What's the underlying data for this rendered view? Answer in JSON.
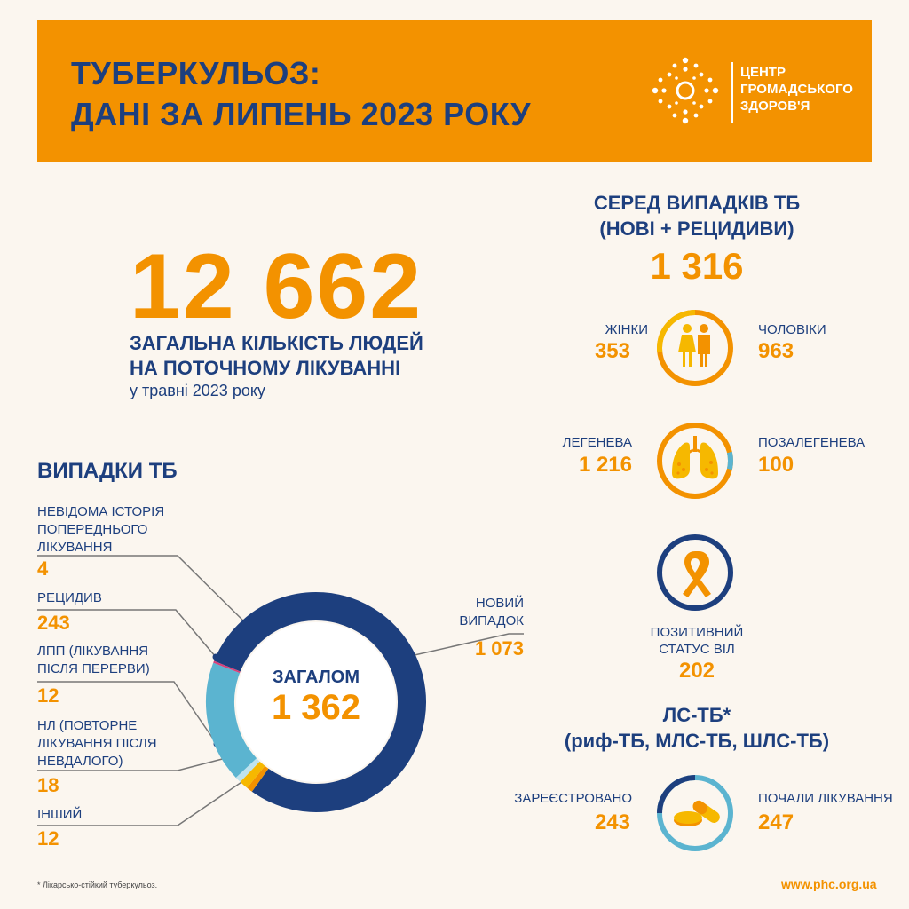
{
  "header": {
    "title_line1": "ТУБЕРКУЛЬОЗ:",
    "title_line2": "ДАНІ ЗА ЛИПЕНЬ 2023 РОКУ",
    "logo_icon": "phc-dotted-circle-icon",
    "logo_text": [
      "ЦЕНТР",
      "ГРОМАДСЬКОГО",
      "ЗДОРОВ'Я"
    ]
  },
  "treatment": {
    "value": "12 662",
    "caption_line1": "ЗАГАЛЬНА КІЛЬКІСТЬ ЛЮДЕЙ",
    "caption_line2": "НА ПОТОЧНОМУ ЛІКУВАННІ",
    "subcaption": "у травні 2023 року"
  },
  "cases": {
    "title": "ВИПАДКИ ТБ",
    "categories": [
      {
        "label": [
          "НЕВІДОМА ІСТОРІЯ",
          "ПОПЕРЕДНЬОГО",
          "ЛІКУВАННЯ"
        ],
        "value": "4"
      },
      {
        "label": [
          "РЕЦИДИВ"
        ],
        "value": "243"
      },
      {
        "label": [
          "ЛПП (ЛІКУВАННЯ",
          "ПІСЛЯ ПЕРЕРВИ)"
        ],
        "value": "12"
      },
      {
        "label": [
          "НЛ (ПОВТОРНЕ",
          "ЛІКУВАННЯ ПІСЛЯ",
          "НЕВДАЛОГО)"
        ],
        "value": "18"
      },
      {
        "label": [
          "ІНШИЙ"
        ],
        "value": "12"
      },
      {
        "label": [
          "НОВИЙ",
          "ВИПАДОК"
        ],
        "value": "1 073"
      }
    ],
    "total_label": "ЗАГАЛОМ",
    "total_value": "1 362"
  },
  "chart_data": {
    "type": "pie",
    "categories": [
      "НОВИЙ ВИПАДОК",
      "ІНШИЙ",
      "НЛ (ПОВТОРНЕ ЛІКУВАННЯ ПІСЛЯ НЕВДАЛОГО)",
      "ЛПП (ЛІКУВАННЯ ПІСЛЯ ПЕРЕРВИ)",
      "РЕЦИДИВ",
      "НЕВІДОМА ІСТОРІЯ ПОПЕРЕДНЬОГО ЛІКУВАННЯ"
    ],
    "values": [
      1073,
      12,
      18,
      12,
      243,
      4
    ],
    "colors": [
      "#1d3f7e",
      "#f39200",
      "#f6b800",
      "#bfe3ee",
      "#5bb4d0",
      "#d6407a"
    ],
    "total": 1362
  },
  "right": {
    "title_line1": "СЕРЕД ВИПАДКІВ ТБ",
    "title_line2": "(НОВІ + РЕЦИДИВИ)",
    "value": "1 316",
    "women_label": "ЖІНКИ",
    "women_value": "353",
    "men_label": "ЧОЛОВІКИ",
    "men_value": "963",
    "gender_icon": "people-icon",
    "gender_share": {
      "women": 353,
      "men": 963
    },
    "pulmonary_label": "ЛЕГЕНЕВА",
    "pulmonary_value": "1 216",
    "extra_label": "ПОЗАЛЕГЕНЕВА",
    "extra_value": "100",
    "lungs_icon": "lungs-icon",
    "lungs_share": {
      "pulmonary": 1216,
      "extrapulmonary": 100
    },
    "hiv_icon": "ribbon-icon",
    "hiv_label_line1": "ПОЗИТИВНИЙ",
    "hiv_label_line2": "СТАТУС ВІЛ",
    "hiv_value": "202",
    "dr_title": "ЛС-ТБ*",
    "dr_subtitle": "(риф-ТБ, МЛС-ТБ, ШЛС-ТБ)",
    "registered_label": "ЗАРЕЄСТРОВАНО",
    "registered_value": "243",
    "started_label": "ПОЧАЛИ ЛІКУВАННЯ",
    "started_value": "247",
    "pills_icon": "pills-icon"
  },
  "footer": {
    "footnote": "* Лікарсько-стійкий туберкульоз.",
    "website": "www.phc.org.ua"
  },
  "colors": {
    "orange": "#f39200",
    "navy": "#1d3f7e",
    "yellow": "#f6b800",
    "light_blue": "#5bb4d0",
    "background": "#fbf6ef"
  }
}
